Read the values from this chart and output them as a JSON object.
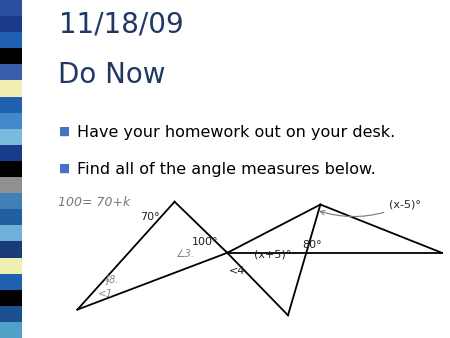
{
  "title_line1": "11/18/09",
  "title_line2": "Do Now",
  "bullet1": "Have your homework out on your desk.",
  "bullet2": "Find all of the angle measures below.",
  "handwritten_note": "100= 70+k",
  "title_color": "#1F3864",
  "title_fontsize": 20,
  "bullet_fontsize": 11.5,
  "bullet_color": "#4472C4",
  "handwritten_color": "#777777",
  "bg_color": "#FFFFFF",
  "sidebar_colors": [
    "#2B4DA0",
    "#1A3A8A",
    "#2060B0",
    "#000000",
    "#3A5FAA",
    "#F0EEB0",
    "#2060B0",
    "#4488CC",
    "#7ABADC",
    "#1A3A8A",
    "#000000",
    "#909090",
    "#4080B8",
    "#2060A0",
    "#70B0D8",
    "#1A3A7A",
    "#F0EEB0",
    "#2060B0",
    "#000000",
    "#1A5090",
    "#50A0C8"
  ],
  "line_color": "#000000",
  "annotation_color": "#222222",
  "labels": {
    "70deg": "70°",
    "100deg": "100°",
    "xp5deg": "(x+5)°",
    "xm5deg": "(x-5)°",
    "80deg": "80°",
    "angle3": "∠3.",
    "angle4": "<4",
    "angle1": "<1",
    "angle_small": "∲8."
  }
}
